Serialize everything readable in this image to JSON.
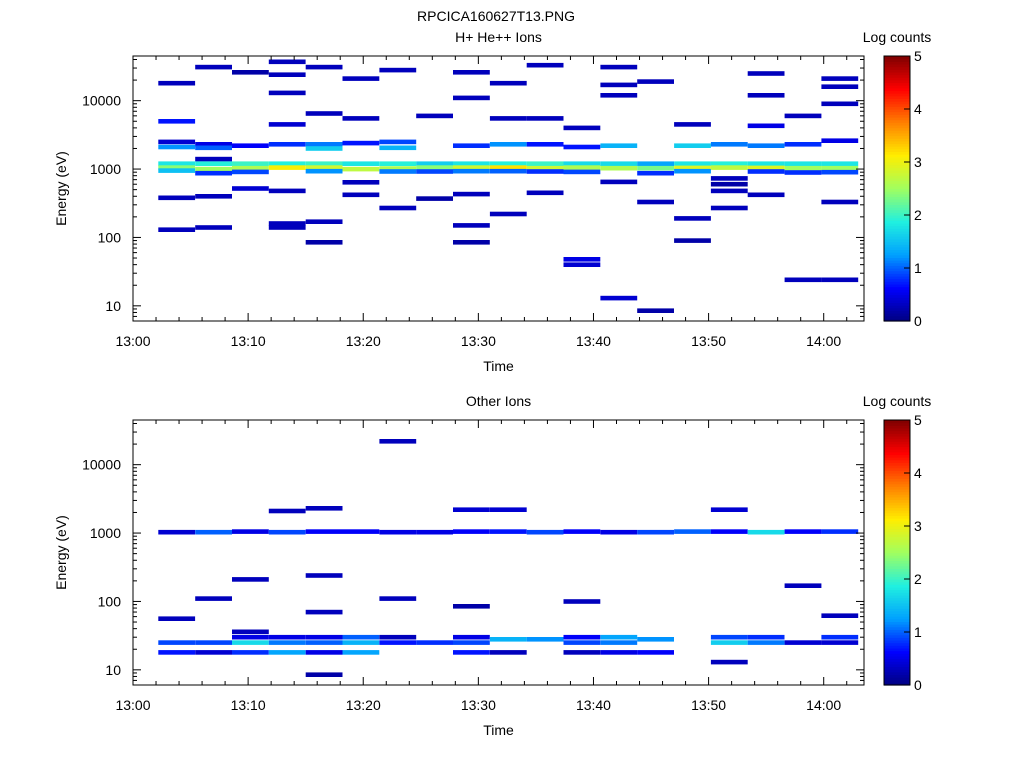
{
  "figure": {
    "title": "RPCICA160627T13.PNG"
  },
  "colorscale": {
    "label": "Log counts",
    "min": 0,
    "max": 5,
    "ticks": [
      "0",
      "1",
      "2",
      "3",
      "4",
      "5"
    ],
    "stops": [
      "#00007f",
      "#0000ff",
      "#00a0ff",
      "#20f0e0",
      "#a0ff60",
      "#ffee00",
      "#ff8000",
      "#ff0000",
      "#7f0000"
    ]
  },
  "chart_data": [
    {
      "type": "heatmap",
      "title": "H+ He++ Ions",
      "xlabel": "Time",
      "ylabel": "Energy (eV)",
      "x_ticks": [
        "13:00",
        "13:10",
        "13:20",
        "13:30",
        "13:40",
        "13:50",
        "14:00"
      ],
      "xlim_minutes": [
        0,
        63.5
      ],
      "y_scale": "log",
      "y_ticks": [
        "10",
        "100",
        "1000",
        "10000"
      ],
      "ylim": [
        6,
        45000
      ],
      "time_bins_start_minutes": [
        2.2,
        5.4,
        8.6,
        11.8,
        15.0,
        18.2,
        21.4,
        24.6,
        27.8,
        31.0,
        34.2,
        37.4,
        40.6,
        43.8,
        47.0,
        50.2,
        53.4,
        56.6,
        59.8
      ],
      "bin_width_minutes": 3.2,
      "cells": [
        [
          0,
          18000,
          0.3
        ],
        [
          0,
          5000,
          0.7
        ],
        [
          0,
          2500,
          0.4
        ],
        [
          0,
          2100,
          1.2
        ],
        [
          0,
          1200,
          1.8
        ],
        [
          0,
          1050,
          2.4
        ],
        [
          0,
          950,
          1.5
        ],
        [
          0,
          380,
          0.3
        ],
        [
          0,
          130,
          0.3
        ],
        [
          1,
          31000,
          0.3
        ],
        [
          1,
          2300,
          0.5
        ],
        [
          1,
          2050,
          1.0
        ],
        [
          1,
          1400,
          0.3
        ],
        [
          1,
          1200,
          1.9
        ],
        [
          1,
          1000,
          2.5
        ],
        [
          1,
          870,
          0.8
        ],
        [
          1,
          400,
          0.3
        ],
        [
          1,
          140,
          0.3
        ],
        [
          2,
          26000,
          0.2
        ],
        [
          2,
          2200,
          0.6
        ],
        [
          2,
          1200,
          2.0
        ],
        [
          2,
          1030,
          2.6
        ],
        [
          2,
          910,
          0.9
        ],
        [
          2,
          520,
          0.4
        ],
        [
          3,
          37000,
          0.3
        ],
        [
          3,
          24000,
          0.3
        ],
        [
          3,
          13000,
          0.3
        ],
        [
          3,
          4500,
          0.4
        ],
        [
          3,
          2300,
          0.8
        ],
        [
          3,
          1200,
          1.9
        ],
        [
          3,
          1050,
          3.1
        ],
        [
          3,
          480,
          0.3
        ],
        [
          3,
          160,
          0.3
        ],
        [
          3,
          140,
          0.3
        ],
        [
          4,
          31000,
          0.3
        ],
        [
          4,
          6500,
          0.3
        ],
        [
          4,
          2300,
          1.1
        ],
        [
          4,
          2000,
          1.6
        ],
        [
          4,
          1200,
          2.0
        ],
        [
          4,
          1050,
          2.8
        ],
        [
          4,
          930,
          1.2
        ],
        [
          4,
          170,
          0.3
        ],
        [
          4,
          85,
          0.2
        ],
        [
          5,
          21000,
          0.3
        ],
        [
          5,
          5500,
          0.3
        ],
        [
          5,
          2400,
          0.7
        ],
        [
          5,
          1200,
          1.8
        ],
        [
          5,
          1000,
          2.7
        ],
        [
          5,
          640,
          0.3
        ],
        [
          5,
          420,
          0.3
        ],
        [
          6,
          28000,
          0.3
        ],
        [
          6,
          2500,
          0.9
        ],
        [
          6,
          2050,
          1.4
        ],
        [
          6,
          1200,
          1.9
        ],
        [
          6,
          1020,
          2.6
        ],
        [
          6,
          920,
          1.1
        ],
        [
          6,
          270,
          0.3
        ],
        [
          7,
          6000,
          0.3
        ],
        [
          7,
          1200,
          1.6
        ],
        [
          7,
          1050,
          2.4
        ],
        [
          7,
          920,
          0.9
        ],
        [
          7,
          370,
          0.2
        ],
        [
          8,
          26000,
          0.3
        ],
        [
          8,
          11000,
          0.3
        ],
        [
          8,
          2200,
          0.8
        ],
        [
          8,
          1200,
          1.8
        ],
        [
          8,
          1050,
          2.8
        ],
        [
          8,
          930,
          1.1
        ],
        [
          8,
          430,
          0.3
        ],
        [
          8,
          150,
          0.3
        ],
        [
          8,
          85,
          0.2
        ],
        [
          9,
          18000,
          0.3
        ],
        [
          9,
          5500,
          0.3
        ],
        [
          9,
          2300,
          1.2
        ],
        [
          9,
          1200,
          1.9
        ],
        [
          9,
          1050,
          3.2
        ],
        [
          9,
          930,
          1.0
        ],
        [
          9,
          220,
          0.3
        ],
        [
          10,
          33000,
          0.3
        ],
        [
          10,
          5500,
          0.3
        ],
        [
          10,
          2300,
          0.7
        ],
        [
          10,
          1200,
          2.0
        ],
        [
          10,
          1030,
          2.8
        ],
        [
          10,
          920,
          0.8
        ],
        [
          10,
          450,
          0.3
        ],
        [
          11,
          4000,
          0.3
        ],
        [
          11,
          2100,
          0.7
        ],
        [
          11,
          1200,
          1.7
        ],
        [
          11,
          1050,
          2.6
        ],
        [
          11,
          910,
          0.9
        ],
        [
          11,
          48,
          0.5
        ],
        [
          11,
          40,
          0.4
        ],
        [
          12,
          31000,
          0.3
        ],
        [
          12,
          17000,
          0.3
        ],
        [
          12,
          12000,
          0.3
        ],
        [
          12,
          2200,
          1.4
        ],
        [
          12,
          1200,
          1.7
        ],
        [
          12,
          1030,
          2.6
        ],
        [
          12,
          650,
          0.3
        ],
        [
          12,
          13,
          0.4
        ],
        [
          13,
          19000,
          0.3
        ],
        [
          13,
          1200,
          1.3
        ],
        [
          13,
          1030,
          2.3
        ],
        [
          13,
          870,
          0.8
        ],
        [
          13,
          330,
          0.3
        ],
        [
          13,
          8.5,
          0.2
        ],
        [
          14,
          4500,
          0.3
        ],
        [
          14,
          2200,
          1.6
        ],
        [
          14,
          1200,
          1.8
        ],
        [
          14,
          1040,
          2.9
        ],
        [
          14,
          930,
          1.2
        ],
        [
          14,
          190,
          0.3
        ],
        [
          14,
          90,
          0.2
        ],
        [
          15,
          2300,
          1.1
        ],
        [
          15,
          1200,
          1.9
        ],
        [
          15,
          1050,
          2.7
        ],
        [
          15,
          730,
          0.3
        ],
        [
          15,
          600,
          0.2
        ],
        [
          15,
          480,
          0.3
        ],
        [
          15,
          270,
          0.3
        ],
        [
          16,
          25000,
          0.3
        ],
        [
          16,
          12000,
          0.3
        ],
        [
          16,
          4300,
          0.5
        ],
        [
          16,
          2200,
          1.1
        ],
        [
          16,
          1200,
          1.8
        ],
        [
          16,
          1040,
          2.9
        ],
        [
          16,
          920,
          0.8
        ],
        [
          16,
          420,
          0.3
        ],
        [
          17,
          6000,
          0.3
        ],
        [
          17,
          2300,
          0.8
        ],
        [
          17,
          1200,
          1.8
        ],
        [
          17,
          1030,
          2.5
        ],
        [
          17,
          890,
          0.8
        ],
        [
          17,
          24,
          0.3
        ],
        [
          18,
          21000,
          0.3
        ],
        [
          18,
          16000,
          0.3
        ],
        [
          18,
          9000,
          0.3
        ],
        [
          18,
          2600,
          0.5
        ],
        [
          18,
          1200,
          1.8
        ],
        [
          18,
          1030,
          2.5
        ],
        [
          18,
          900,
          0.9
        ],
        [
          18,
          330,
          0.3
        ],
        [
          18,
          24,
          0.3
        ]
      ]
    },
    {
      "type": "heatmap",
      "title": "Other Ions",
      "xlabel": "Time",
      "ylabel": "Energy (eV)",
      "x_ticks": [
        "13:00",
        "13:10",
        "13:20",
        "13:30",
        "13:40",
        "13:50",
        "14:00"
      ],
      "xlim_minutes": [
        0,
        63.5
      ],
      "y_scale": "log",
      "y_ticks": [
        "10",
        "100",
        "1000",
        "10000"
      ],
      "ylim": [
        6,
        45000
      ],
      "time_bins_start_minutes": [
        2.2,
        5.4,
        8.6,
        11.8,
        15.0,
        18.2,
        21.4,
        24.6,
        27.8,
        31.0,
        34.2,
        37.4,
        40.6,
        43.8,
        47.0,
        50.2,
        53.4,
        56.6,
        59.8
      ],
      "bin_width_minutes": 3.2,
      "cells": [
        [
          0,
          1030,
          0.4
        ],
        [
          0,
          56,
          0.3
        ],
        [
          0,
          25,
          0.9
        ],
        [
          0,
          18,
          0.7
        ],
        [
          1,
          1030,
          1.0
        ],
        [
          1,
          110,
          0.3
        ],
        [
          1,
          25,
          0.9
        ],
        [
          1,
          18,
          0.4
        ],
        [
          2,
          1050,
          0.5
        ],
        [
          2,
          210,
          0.3
        ],
        [
          2,
          36,
          0.3
        ],
        [
          2,
          30,
          0.5
        ],
        [
          2,
          25,
          1.7
        ],
        [
          2,
          18,
          0.8
        ],
        [
          3,
          1030,
          0.9
        ],
        [
          3,
          2100,
          0.3
        ],
        [
          3,
          30,
          0.5
        ],
        [
          3,
          25,
          1.1
        ],
        [
          3,
          18,
          1.3
        ],
        [
          4,
          1050,
          0.6
        ],
        [
          4,
          2300,
          0.3
        ],
        [
          4,
          240,
          0.3
        ],
        [
          4,
          70,
          0.3
        ],
        [
          4,
          30,
          0.5
        ],
        [
          4,
          25,
          1.0
        ],
        [
          4,
          18,
          0.5
        ],
        [
          4,
          8.5,
          0.2
        ],
        [
          5,
          1050,
          0.6
        ],
        [
          5,
          30,
          1.0
        ],
        [
          5,
          25,
          1.4
        ],
        [
          5,
          18,
          1.3
        ],
        [
          6,
          1030,
          0.5
        ],
        [
          6,
          22000,
          0.3
        ],
        [
          6,
          110,
          0.3
        ],
        [
          6,
          30,
          0.3
        ],
        [
          6,
          25,
          0.7
        ],
        [
          7,
          1030,
          0.5
        ],
        [
          7,
          25,
          0.8
        ],
        [
          8,
          1050,
          0.6
        ],
        [
          8,
          2200,
          0.4
        ],
        [
          8,
          85,
          0.2
        ],
        [
          8,
          30,
          0.5
        ],
        [
          8,
          25,
          0.9
        ],
        [
          8,
          18,
          0.7
        ],
        [
          9,
          1050,
          0.7
        ],
        [
          9,
          2200,
          0.4
        ],
        [
          9,
          28,
          1.4
        ],
        [
          9,
          18,
          0.3
        ],
        [
          10,
          1030,
          0.9
        ],
        [
          10,
          28,
          1.2
        ],
        [
          11,
          1050,
          0.6
        ],
        [
          11,
          100,
          0.3
        ],
        [
          11,
          30,
          0.6
        ],
        [
          11,
          25,
          0.9
        ],
        [
          11,
          18,
          0.3
        ],
        [
          12,
          1030,
          0.5
        ],
        [
          12,
          30,
          1.3
        ],
        [
          12,
          25,
          1.1
        ],
        [
          12,
          18,
          0.5
        ],
        [
          13,
          1030,
          0.9
        ],
        [
          13,
          28,
          1.2
        ],
        [
          13,
          18,
          0.6
        ],
        [
          14,
          1050,
          1.0
        ],
        [
          15,
          1050,
          0.6
        ],
        [
          15,
          2200,
          0.4
        ],
        [
          15,
          30,
          0.9
        ],
        [
          15,
          25,
          1.6
        ],
        [
          15,
          13,
          0.3
        ],
        [
          16,
          1030,
          1.7
        ],
        [
          16,
          30,
          0.8
        ],
        [
          16,
          25,
          1.1
        ],
        [
          17,
          1050,
          0.6
        ],
        [
          17,
          170,
          0.3
        ],
        [
          17,
          25,
          0.4
        ],
        [
          18,
          1050,
          0.8
        ],
        [
          18,
          62,
          0.3
        ],
        [
          18,
          30,
          0.8
        ],
        [
          18,
          25,
          0.4
        ]
      ]
    }
  ]
}
